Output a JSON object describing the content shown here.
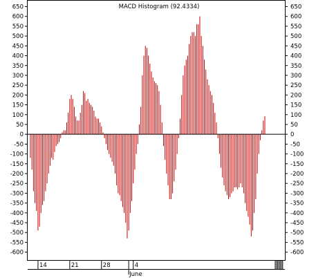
{
  "chart_data": {
    "type": "bar",
    "title": "MACD Histogram (92.4334)",
    "ylim": [
      -640,
      680
    ],
    "yticks": [
      650,
      600,
      550,
      500,
      450,
      400,
      350,
      300,
      250,
      200,
      150,
      100,
      50,
      0,
      -50,
      -100,
      -150,
      -200,
      -250,
      -300,
      -350,
      -400,
      -450,
      -500,
      -550,
      -600
    ],
    "xlabels": [
      {
        "label": "14",
        "index": 5
      },
      {
        "label": "21",
        "index": 26
      },
      {
        "label": "28",
        "index": 47
      },
      {
        "label": "4",
        "index": 68
      }
    ],
    "month_label": {
      "label": "June",
      "index": 65
    },
    "bar_color": "#cc0000",
    "values": [
      -120,
      -180,
      -290,
      -350,
      -390,
      -490,
      -470,
      -400,
      -360,
      -340,
      -290,
      -250,
      -200,
      -160,
      -120,
      -130,
      -90,
      -60,
      -50,
      -40,
      -20,
      10,
      20,
      20,
      60,
      110,
      180,
      200,
      180,
      140,
      90,
      70,
      70,
      110,
      150,
      220,
      210,
      170,
      180,
      160,
      150,
      140,
      120,
      90,
      80,
      80,
      60,
      40,
      10,
      -20,
      -50,
      -80,
      -100,
      -120,
      -140,
      -160,
      -200,
      -260,
      -300,
      -310,
      -340,
      -370,
      -400,
      -450,
      -530,
      -490,
      -400,
      -340,
      -250,
      -180,
      -100,
      -50,
      50,
      140,
      300,
      400,
      450,
      440,
      400,
      360,
      320,
      290,
      270,
      260,
      250,
      220,
      150,
      60,
      -60,
      -130,
      -200,
      -260,
      -330,
      -330,
      -300,
      -240,
      -180,
      -100,
      -20,
      80,
      200,
      300,
      350,
      380,
      400,
      460,
      500,
      520,
      520,
      500,
      560,
      560,
      600,
      500,
      450,
      380,
      330,
      280,
      250,
      220,
      200,
      160,
      110,
      60,
      -20,
      -100,
      -170,
      -220,
      -260,
      -290,
      -310,
      -330,
      -320,
      -300,
      -290,
      -270,
      -270,
      -280,
      -270,
      -250,
      -270,
      -300,
      -350,
      -390,
      -420,
      -460,
      -520,
      -490,
      -400,
      -330,
      -200,
      -100,
      -30,
      20,
      70,
      92
    ]
  }
}
